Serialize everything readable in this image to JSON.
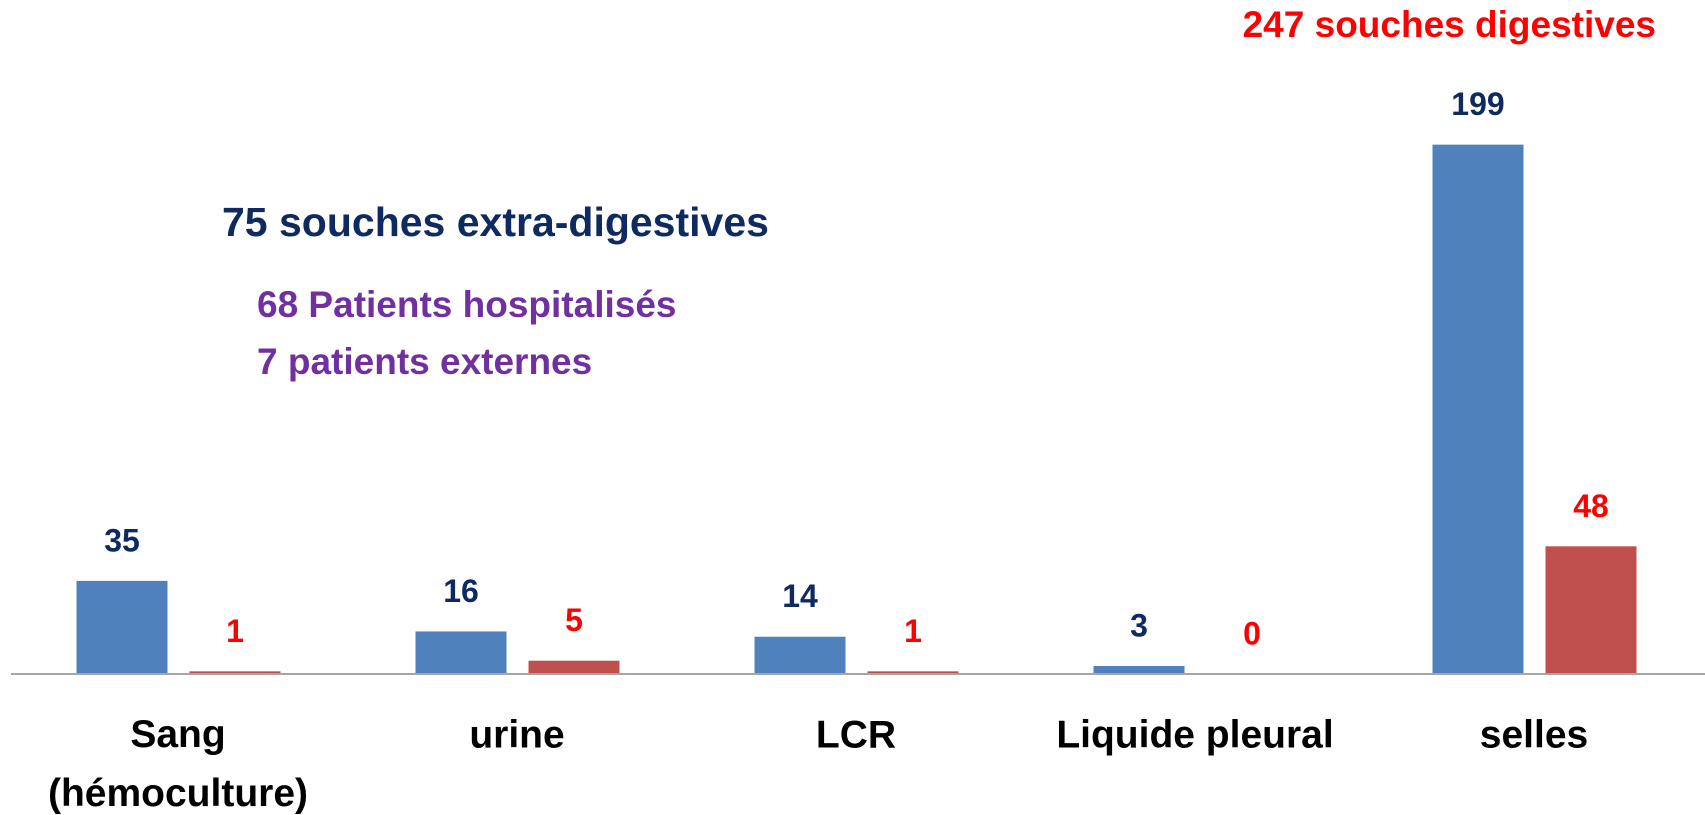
{
  "chart_data": {
    "type": "bar",
    "categories": [
      "Sang\n(hémoculture)",
      "urine",
      "LCR",
      "Liquide pleural",
      "selles"
    ],
    "series": [
      {
        "color": "#4f81bd",
        "label_color": "#0e2a5f",
        "values": [
          35,
          16,
          14,
          3,
          199
        ]
      },
      {
        "color": "#c0504d",
        "label_color": "#ff0000",
        "values": [
          1,
          5,
          1,
          0,
          48
        ]
      }
    ],
    "ylim": [
      0,
      200
    ],
    "annotations": [
      {
        "text": "247 souches  digestives",
        "color": "#ff0000"
      },
      {
        "text": "75 souches extra-digestives",
        "color": "#0e2a5f"
      },
      {
        "text": "68  Patients hospitalisés",
        "color": "#7030a0"
      },
      {
        "text": "7 patients  externes",
        "color": "#7030a0"
      }
    ]
  }
}
